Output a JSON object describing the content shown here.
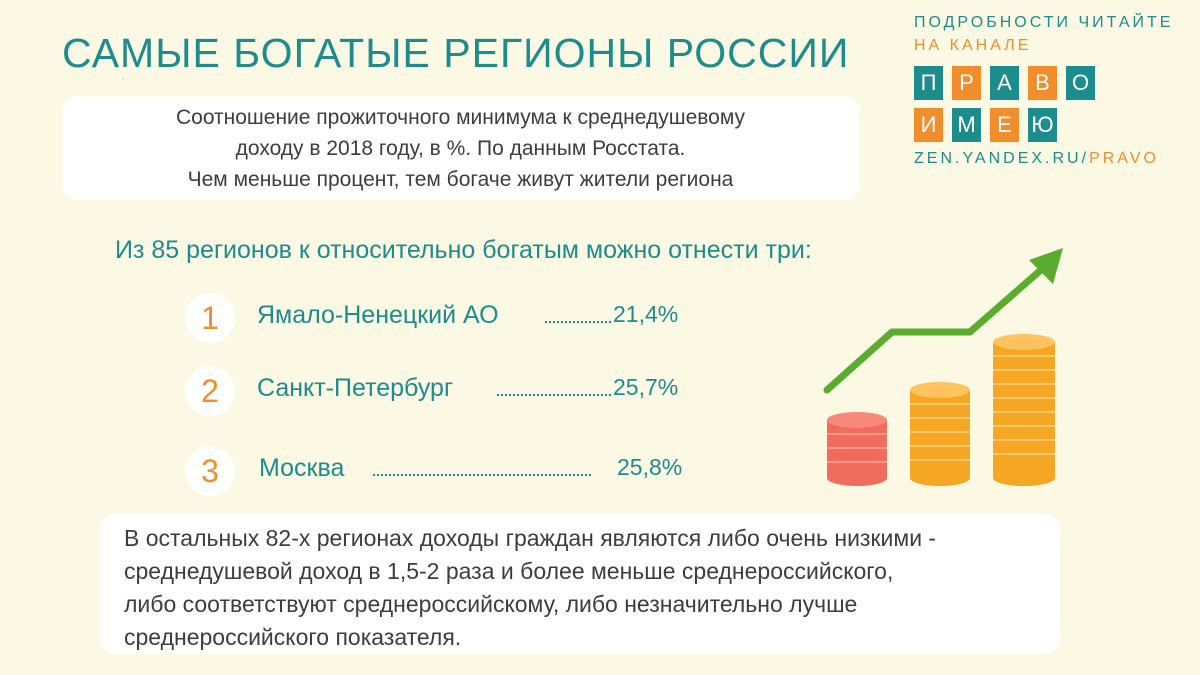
{
  "title": "САМЫЕ БОГАТЫЕ РЕГИОНЫ РОССИИ",
  "intro_lines": [
    "Соотношение прожиточного минимума к среднедушевому",
    "доходу в 2018 году, в %. По данным Росстата.",
    "Чем меньше процент, тем богаче живут жители региона"
  ],
  "subtitle": "Из 85 регионов к относительно богатым можно отнести три:",
  "regions": [
    {
      "rank": "1",
      "name": "Ямало-Ненецкий АО",
      "value": "21,4%"
    },
    {
      "rank": "2",
      "name": "Санкт-Петербург",
      "value": "25,7%"
    },
    {
      "rank": "3",
      "name": "Москва",
      "value": "25,8%"
    }
  ],
  "conclusion_lines": [
    "В остальных 82-х регионах доходы граждан являются либо очень низкими -",
    "среднедушевой доход в 1,5-2 раза и более меньше среднероссийского,",
    "либо соответствуют среднероссийскому, либо незначительно лучше",
    "среднероссийского показателя."
  ],
  "logo": {
    "top_line": "ПОДРОБНОСТИ ЧИТАЙТЕ",
    "second_line": "НА КАНАЛЕ",
    "word1": [
      "П",
      "Р",
      "А",
      "В",
      "О"
    ],
    "word2": [
      "И",
      "М",
      "Е",
      "Ю"
    ],
    "url_main": "ZEN.YANDEX.RU/",
    "url_suffix": "PRAVO"
  },
  "colors": {
    "accent_teal": "#1d8c8c",
    "accent_orange": "#f28d2b",
    "background": "#fbf8e3",
    "arrow_green": "#5aab2e"
  },
  "icons": [
    "growth-arrow-icon",
    "coin-stack-icon"
  ]
}
